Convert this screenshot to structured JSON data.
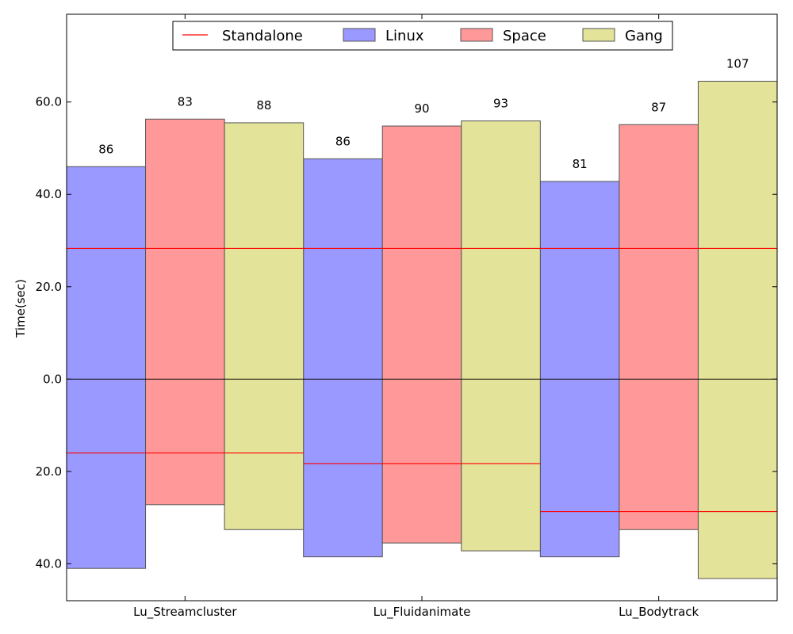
{
  "chart_data": {
    "type": "bar",
    "ylabel": "Time(sec)",
    "ylim": [
      -48,
      79
    ],
    "yticks": [
      60,
      40,
      20,
      0,
      -20,
      -40
    ],
    "ytick_labels": [
      "60.0",
      "40.0",
      "20.0",
      "0.0",
      "20.0",
      "40.0"
    ],
    "categories": [
      "Lu_Streamcluster",
      "Lu_Fluidanimate",
      "Lu_Bodytrack"
    ],
    "legend_position": "top-center",
    "legend_labels": {
      "standalone": "Standalone",
      "linux": "Linux",
      "space": "Space",
      "gang": "Gang"
    },
    "colors": {
      "linux": "#9999ff",
      "space": "#ff9999",
      "gang": "#e3e399",
      "standalone": "#ff0000",
      "bar_edge": "#555555",
      "zero_line": "#000000"
    },
    "series": [
      {
        "key": "linux",
        "name": "Linux",
        "upper": [
          46,
          47.7,
          42.8
        ],
        "lower": [
          41,
          38.5,
          38.5
        ],
        "totals": [
          "86",
          "86",
          "81"
        ]
      },
      {
        "key": "space",
        "name": "Space",
        "upper": [
          56.3,
          54.8,
          55.1
        ],
        "lower": [
          27.2,
          35.5,
          32.6
        ],
        "totals": [
          "83",
          "90",
          "87"
        ]
      },
      {
        "key": "gang",
        "name": "Gang",
        "upper": [
          55.5,
          55.9,
          64.5
        ],
        "lower": [
          32.6,
          37.2,
          43.2
        ],
        "totals": [
          "88",
          "93",
          "107"
        ]
      }
    ],
    "standalone": {
      "name": "Standalone",
      "upper": 28.3,
      "lower": [
        16.0,
        18.3,
        28.7
      ]
    }
  }
}
